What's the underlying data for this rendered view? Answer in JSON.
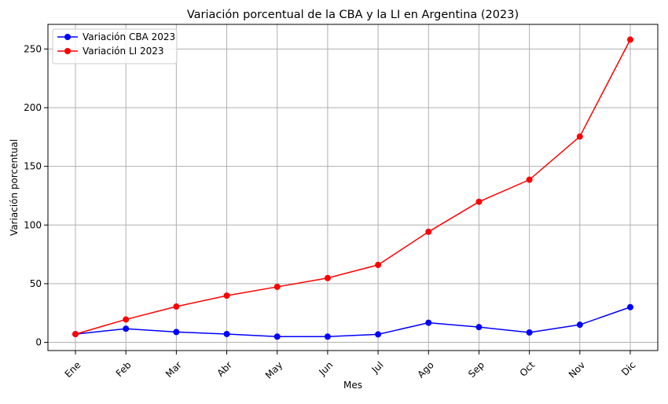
{
  "chart_data": {
    "type": "line",
    "title": "Variación porcentual de la CBA y la LI en Argentina (2023)",
    "xlabel": "Mes",
    "ylabel": "Variación porcentual",
    "categories": [
      "Ene",
      "Feb",
      "Mar",
      "Abr",
      "May",
      "Jun",
      "Jul",
      "Ago",
      "Sep",
      "Oct",
      "Nov",
      "Dic"
    ],
    "ylim": [
      -7,
      271
    ],
    "yticks": [
      0,
      50,
      100,
      150,
      200,
      250
    ],
    "grid": true,
    "legend_position": "top-left",
    "series": [
      {
        "name": "Variación CBA 2023",
        "color": "#0000ff",
        "values": [
          7,
          11.6,
          8.8,
          7.1,
          4.9,
          4.9,
          6.8,
          16.7,
          13.0,
          8.4,
          15.0,
          30.0
        ]
      },
      {
        "name": "Variación LI 2023",
        "color": "#ff0000",
        "values": [
          7,
          19.5,
          30.5,
          39.8,
          47.3,
          54.8,
          66.0,
          94.2,
          119.8,
          138.6,
          175.4,
          258.0
        ]
      }
    ]
  }
}
